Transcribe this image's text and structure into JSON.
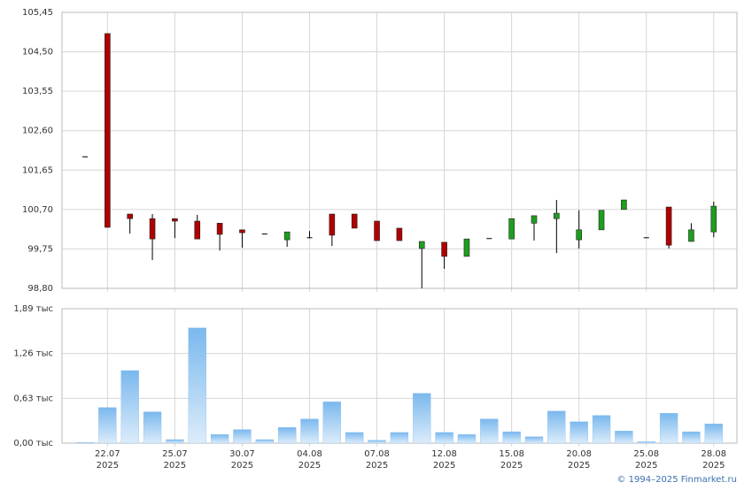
{
  "chart_data": [
    {
      "type": "candlestick",
      "open": [
        101.98,
        104.94,
        100.59,
        100.48,
        100.48,
        100.42,
        100.37,
        100.21,
        100.12,
        99.97,
        100.03,
        100.59,
        100.59,
        100.42,
        100.25,
        99.76,
        99.91,
        99.57,
        100.01,
        99.99,
        100.37,
        100.48,
        99.97,
        100.21,
        100.7,
        100.03,
        100.76,
        99.93,
        100.16
      ],
      "high": [
        101.98,
        104.94,
        100.59,
        100.59,
        100.48,
        100.57,
        100.37,
        100.21,
        100.12,
        100.16,
        100.18,
        100.59,
        100.59,
        100.42,
        100.25,
        99.93,
        99.91,
        99.99,
        100.01,
        100.48,
        100.55,
        100.93,
        100.68,
        100.68,
        100.93,
        100.03,
        100.76,
        100.37,
        100.89
      ],
      "low": [
        101.98,
        100.27,
        100.12,
        99.48,
        100.01,
        99.99,
        99.71,
        99.78,
        100.12,
        99.8,
        100.01,
        99.82,
        100.25,
        99.95,
        99.95,
        98.8,
        99.27,
        99.57,
        100.01,
        99.99,
        99.95,
        99.65,
        99.76,
        100.21,
        100.7,
        100.03,
        99.76,
        99.93,
        100.03
      ],
      "close": [
        101.98,
        100.27,
        100.48,
        99.99,
        100.42,
        99.99,
        100.1,
        100.14,
        100.12,
        100.16,
        100.03,
        100.08,
        100.25,
        99.95,
        99.95,
        99.93,
        99.57,
        99.99,
        100.01,
        100.48,
        100.55,
        100.61,
        100.21,
        100.68,
        100.93,
        100.03,
        99.84,
        100.21,
        100.78
      ],
      "up_color": "#1e9e1e",
      "down_color": "#b00000",
      "ylim": [
        98.8,
        105.45
      ],
      "yticks": [
        {
          "value": 98.8,
          "label": "98,80"
        },
        {
          "value": 99.75,
          "label": "99,75"
        },
        {
          "value": 100.7,
          "label": "100,70"
        },
        {
          "value": 101.65,
          "label": "101,65"
        },
        {
          "value": 102.6,
          "label": "102,60"
        },
        {
          "value": 103.55,
          "label": "103,55"
        },
        {
          "value": 104.5,
          "label": "104,50"
        },
        {
          "value": 105.45,
          "label": "105,45"
        }
      ],
      "grid": true
    },
    {
      "type": "bar",
      "categories": [
        null,
        "22.07\n2025",
        null,
        null,
        "25.07\n2025",
        null,
        null,
        "30.07\n2025",
        null,
        null,
        "04.08\n2025",
        null,
        null,
        "07.08\n2025",
        null,
        null,
        "12.08\n2025",
        null,
        null,
        "15.08\n2025",
        null,
        null,
        "20.08\n2025",
        null,
        null,
        "25.08\n2025",
        null,
        null,
        "28.08\n2025"
      ],
      "values": [
        0.01,
        0.5,
        1.02,
        0.44,
        0.05,
        1.62,
        0.12,
        0.19,
        0.05,
        0.22,
        0.34,
        0.58,
        0.15,
        0.04,
        0.15,
        0.7,
        0.15,
        0.12,
        0.34,
        0.16,
        0.09,
        0.45,
        0.3,
        0.39,
        0.17,
        0.02,
        0.42,
        0.16,
        0.27
      ],
      "color": "#7ab8ee",
      "ylim": [
        0,
        1.89
      ],
      "yticks": [
        {
          "value": 0,
          "label": "0,00 тыс"
        },
        {
          "value": 0.63,
          "label": "0,63 тыс"
        },
        {
          "value": 1.26,
          "label": "1,26 тыс"
        },
        {
          "value": 1.89,
          "label": "1,89 тыс"
        }
      ],
      "grid": true
    }
  ],
  "credit": "© 1994–2025 Finmarket.ru"
}
